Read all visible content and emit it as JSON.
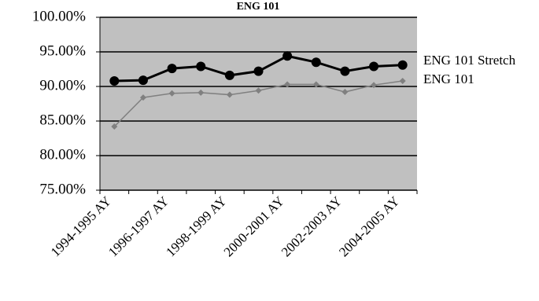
{
  "chart_data": {
    "type": "line",
    "title": "ENG 101",
    "categories": [
      "1994-1995 AY",
      null,
      "1996-1997 AY",
      null,
      "1998-1999 AY",
      null,
      "2000-2001 AY",
      null,
      "2002-2003 AY",
      null,
      "2004-2005 AY"
    ],
    "series": [
      {
        "name": "ENG 101 Stretch",
        "color": "#000000",
        "marker": "circle",
        "values": [
          90.8,
          90.9,
          92.6,
          92.9,
          91.6,
          92.2,
          94.4,
          93.5,
          92.2,
          92.9,
          93.1
        ]
      },
      {
        "name": "ENG 101",
        "color": "#808080",
        "marker": "diamond",
        "values": [
          84.2,
          88.4,
          89.0,
          89.1,
          88.8,
          89.4,
          90.3,
          90.3,
          89.2,
          90.2,
          90.8
        ]
      }
    ],
    "ylim": [
      75,
      100
    ],
    "yticks": [
      {
        "value": 75,
        "label": "75.00%"
      },
      {
        "value": 80,
        "label": "80.00%"
      },
      {
        "value": 85,
        "label": "85.00%"
      },
      {
        "value": 90,
        "label": "90.00%"
      },
      {
        "value": 95,
        "label": "95.00%"
      },
      {
        "value": 100,
        "label": "100.00%"
      }
    ],
    "grid": true,
    "plot_background": "#c0c0c0"
  }
}
